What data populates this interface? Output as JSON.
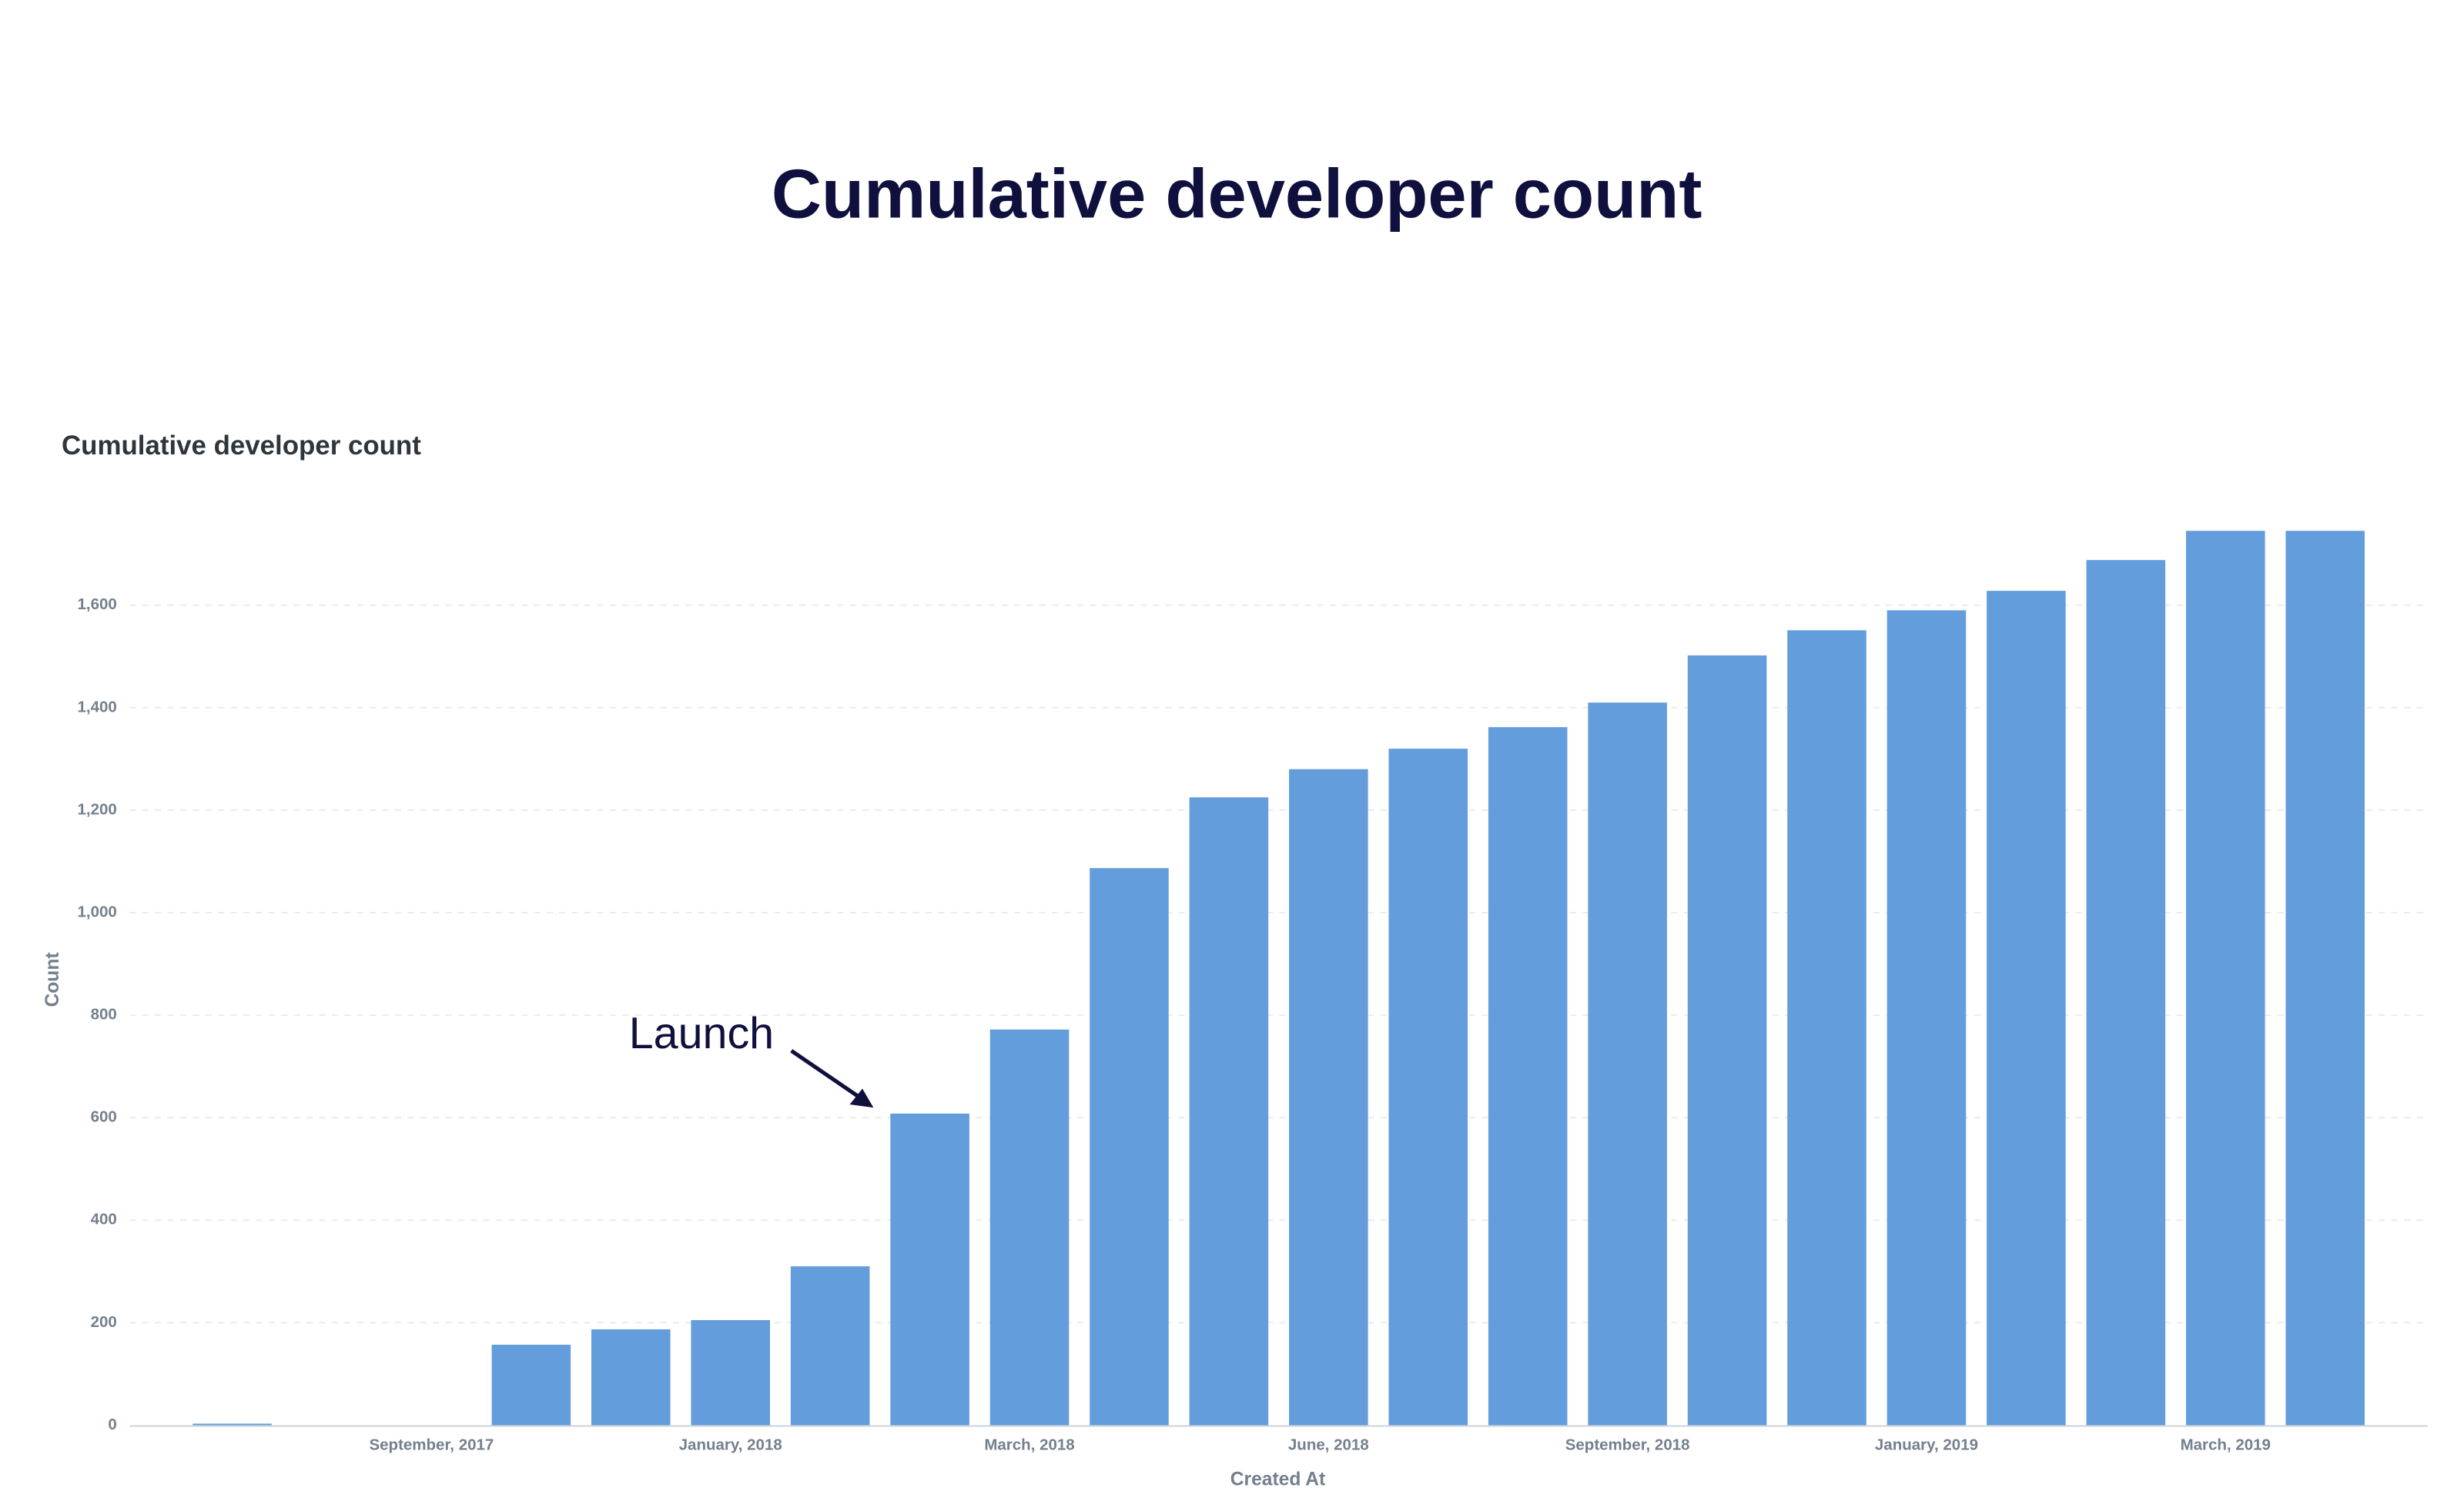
{
  "page_title": "Cumulative developer count",
  "chart_data": {
    "type": "bar",
    "title": "Cumulative developer count",
    "x_label": "Created At",
    "y_label": "Count",
    "annotation": "Launch",
    "categories": [
      null,
      null,
      "September, 2017",
      null,
      null,
      "January, 2018",
      null,
      null,
      "March, 2018",
      null,
      null,
      "June, 2018",
      null,
      null,
      "September, 2018",
      null,
      null,
      "January, 2019",
      null,
      null,
      "March, 2019",
      null
    ],
    "values": [
      3,
      null,
      null,
      157,
      187,
      205,
      310,
      608,
      772,
      1087,
      1225,
      1280,
      1320,
      1362,
      1410,
      1502,
      1551,
      1590,
      1628,
      1688,
      1745,
      1745
    ],
    "color": "#649ddc",
    "ylim": [
      0,
      1800
    ],
    "yticks": [
      0,
      200,
      400,
      600,
      800,
      {
        "value": 1000,
        "label": "1,000"
      },
      {
        "value": 1200,
        "label": "1,200"
      },
      {
        "value": 1400,
        "label": "1,400"
      },
      {
        "value": 1600,
        "label": "1,600"
      }
    ],
    "grid": true
  }
}
